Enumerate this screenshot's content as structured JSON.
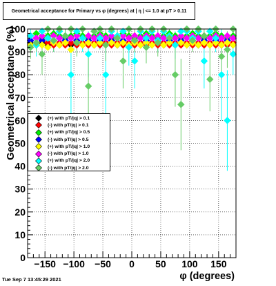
{
  "title": "Geometrical acceptance for Primary vs φ (degrees) at |  η | <= 1.0 at pT > 0.11",
  "footer_timestamp": "Tue Sep  7 13:45:29 2021",
  "chart_data": {
    "type": "scatter",
    "xlabel": "φ (degrees)",
    "ylabel": "Geometrical acceptance (%)",
    "xlim": [
      -180,
      180
    ],
    "ylim": [
      0,
      100
    ],
    "x_ticks": [
      -150,
      -100,
      -50,
      0,
      50,
      100,
      150
    ],
    "y_ticks": [
      0,
      10,
      20,
      30,
      40,
      50,
      60,
      70,
      80,
      90,
      100
    ],
    "grid": true,
    "legend_position": "middle-left",
    "series": [
      {
        "name": "(+) with pT/|q| > 0.1",
        "color": "#000000",
        "marker": "diamond",
        "x": [
          -175,
          -165,
          -155,
          -145,
          -135,
          -125,
          -115,
          -105,
          -95,
          -85,
          -75,
          -65,
          -55,
          -45,
          -35,
          -25,
          -15,
          -5,
          5,
          15,
          25,
          35,
          45,
          55,
          65,
          75,
          85,
          95,
          105,
          115,
          125,
          135,
          145,
          155,
          165,
          175
        ],
        "y": [
          94,
          93,
          94,
          93,
          94,
          93,
          94,
          93,
          94,
          93,
          94,
          93,
          94,
          93,
          94,
          93,
          94,
          93,
          94,
          93,
          94,
          93,
          94,
          93,
          94,
          93,
          94,
          93,
          94,
          93,
          94,
          93,
          94,
          93,
          94,
          93
        ]
      },
      {
        "name": "(-) with pT/|q| > 0.1",
        "color": "#ff0000",
        "marker": "diamond",
        "x": [
          -175,
          -165,
          -155,
          -145,
          -135,
          -125,
          -115,
          -105,
          -95,
          -85,
          -75,
          -65,
          -55,
          -45,
          -35,
          -25,
          -15,
          -5,
          5,
          15,
          25,
          35,
          45,
          55,
          65,
          75,
          85,
          95,
          105,
          115,
          125,
          135,
          145,
          155,
          165,
          175
        ],
        "y": [
          93,
          94,
          93,
          94,
          93,
          94,
          93,
          94,
          93,
          94,
          93,
          94,
          93,
          94,
          93,
          94,
          93,
          94,
          93,
          94,
          93,
          94,
          93,
          94,
          93,
          94,
          93,
          94,
          93,
          94,
          93,
          94,
          93,
          94,
          93,
          94
        ]
      },
      {
        "name": "(+) with pT/|q| > 0.5",
        "color": "#00ee00",
        "marker": "diamond",
        "x": [
          -175,
          -165,
          -155,
          -145,
          -135,
          -125,
          -115,
          -105,
          -95,
          -85,
          -75,
          -65,
          -55,
          -45,
          -35,
          -25,
          -15,
          -5,
          5,
          15,
          25,
          35,
          45,
          55,
          65,
          75,
          85,
          95,
          105,
          115,
          125,
          135,
          145,
          155,
          165,
          175
        ],
        "y": [
          97,
          98,
          96,
          97,
          98,
          97,
          96,
          97,
          98,
          97,
          96,
          97,
          98,
          97,
          96,
          97,
          98,
          97,
          96,
          97,
          98,
          97,
          96,
          97,
          98,
          97,
          96,
          97,
          98,
          97,
          96,
          97,
          98,
          97,
          96,
          97
        ]
      },
      {
        "name": "(-) with pT/|q| > 0.5",
        "color": "#0000ff",
        "marker": "diamond",
        "x": [
          -175,
          -165,
          -155,
          -145,
          -135,
          -125,
          -115,
          -105,
          -95,
          -85,
          -75,
          -65,
          -55,
          -45,
          -35,
          -25,
          -15,
          -5,
          5,
          15,
          25,
          35,
          45,
          55,
          65,
          75,
          85,
          95,
          105,
          115,
          125,
          135,
          145,
          155,
          165,
          175
        ],
        "y": [
          95,
          96,
          95,
          96,
          95,
          96,
          95,
          96,
          95,
          96,
          95,
          96,
          95,
          96,
          95,
          96,
          95,
          96,
          95,
          96,
          95,
          96,
          95,
          96,
          95,
          96,
          95,
          96,
          95,
          96,
          95,
          96,
          95,
          96,
          95,
          96
        ]
      },
      {
        "name": "(+) with pT/|q| > 1.0",
        "color": "#ffff00",
        "marker": "diamond",
        "x": [
          -175,
          -165,
          -155,
          -145,
          -135,
          -125,
          -115,
          -105,
          -95,
          -85,
          -75,
          -65,
          -55,
          -45,
          -35,
          -25,
          -15,
          -5,
          5,
          15,
          25,
          35,
          45,
          55,
          65,
          75,
          85,
          95,
          105,
          115,
          125,
          135,
          145,
          155,
          165,
          175
        ],
        "y": [
          93,
          94,
          93,
          92,
          94,
          93,
          94,
          91,
          94,
          93,
          94,
          93,
          94,
          93,
          94,
          93,
          94,
          93,
          94,
          93,
          94,
          93,
          94,
          93,
          94,
          93,
          94,
          93,
          94,
          93,
          94,
          93,
          94,
          93,
          94,
          93
        ]
      },
      {
        "name": "(-) with pT/|q| > 1.0",
        "color": "#ff00ff",
        "marker": "diamond",
        "x": [
          -175,
          -165,
          -155,
          -145,
          -135,
          -125,
          -115,
          -105,
          -95,
          -85,
          -75,
          -65,
          -55,
          -45,
          -35,
          -25,
          -15,
          -5,
          5,
          15,
          25,
          35,
          45,
          55,
          65,
          75,
          85,
          95,
          105,
          115,
          125,
          135,
          145,
          155,
          165,
          175
        ],
        "y": [
          97,
          96,
          97,
          96,
          97,
          96,
          97,
          96,
          97,
          96,
          97,
          96,
          97,
          96,
          97,
          96,
          97,
          96,
          97,
          96,
          97,
          96,
          97,
          96,
          97,
          96,
          97,
          96,
          97,
          96,
          97,
          96,
          97,
          96,
          97,
          96
        ]
      },
      {
        "name": "(+) with pT/|q| > 2.0",
        "color": "#00ffff",
        "marker": "diamond",
        "x": [
          -175,
          -165,
          -155,
          -145,
          -135,
          -125,
          -115,
          -105,
          -95,
          -85,
          -75,
          -65,
          -55,
          -45,
          -35,
          -25,
          -15,
          -5,
          5,
          15,
          25,
          35,
          45,
          55,
          65,
          75,
          85,
          95,
          105,
          115,
          125,
          135,
          145,
          155,
          165,
          175
        ],
        "y": [
          97,
          93,
          99,
          96,
          95,
          99,
          97,
          80,
          99,
          96,
          89,
          99,
          96,
          80,
          99,
          97,
          99,
          92,
          86,
          99,
          96,
          99,
          95,
          99,
          97,
          93,
          99,
          99,
          96,
          99,
          86,
          99,
          96,
          80,
          60,
          89
        ],
        "err": [
          3,
          5,
          2,
          4,
          5,
          2,
          4,
          18,
          2,
          6,
          10,
          2,
          5,
          18,
          2,
          4,
          2,
          8,
          12,
          2,
          5,
          2,
          5,
          2,
          4,
          6,
          2,
          2,
          5,
          2,
          12,
          2,
          6,
          20,
          22,
          9
        ]
      },
      {
        "name": "(-) with pT/|q| > 2.0",
        "color": "#66cc66",
        "marker": "diamond",
        "x": [
          -175,
          -165,
          -155,
          -145,
          -135,
          -125,
          -115,
          -105,
          -95,
          -85,
          -75,
          -65,
          -55,
          -45,
          -35,
          -25,
          -15,
          -5,
          5,
          15,
          25,
          35,
          45,
          55,
          65,
          75,
          85,
          95,
          105,
          115,
          125,
          135,
          145,
          155,
          165,
          175
        ],
        "y": [
          92,
          94,
          89,
          100,
          95,
          100,
          97,
          100,
          94,
          100,
          75,
          99,
          100,
          93,
          100,
          96,
          86,
          100,
          95,
          100,
          92,
          100,
          94,
          100,
          96,
          80,
          67,
          100,
          95,
          100,
          97,
          78,
          100,
          88,
          91,
          100
        ],
        "err": [
          5,
          4,
          9,
          1,
          5,
          1,
          4,
          1,
          6,
          1,
          15,
          2,
          1,
          7,
          1,
          4,
          12,
          1,
          5,
          1,
          7,
          1,
          6,
          1,
          4,
          14,
          20,
          1,
          5,
          1,
          4,
          14,
          1,
          10,
          8,
          1
        ]
      }
    ]
  }
}
